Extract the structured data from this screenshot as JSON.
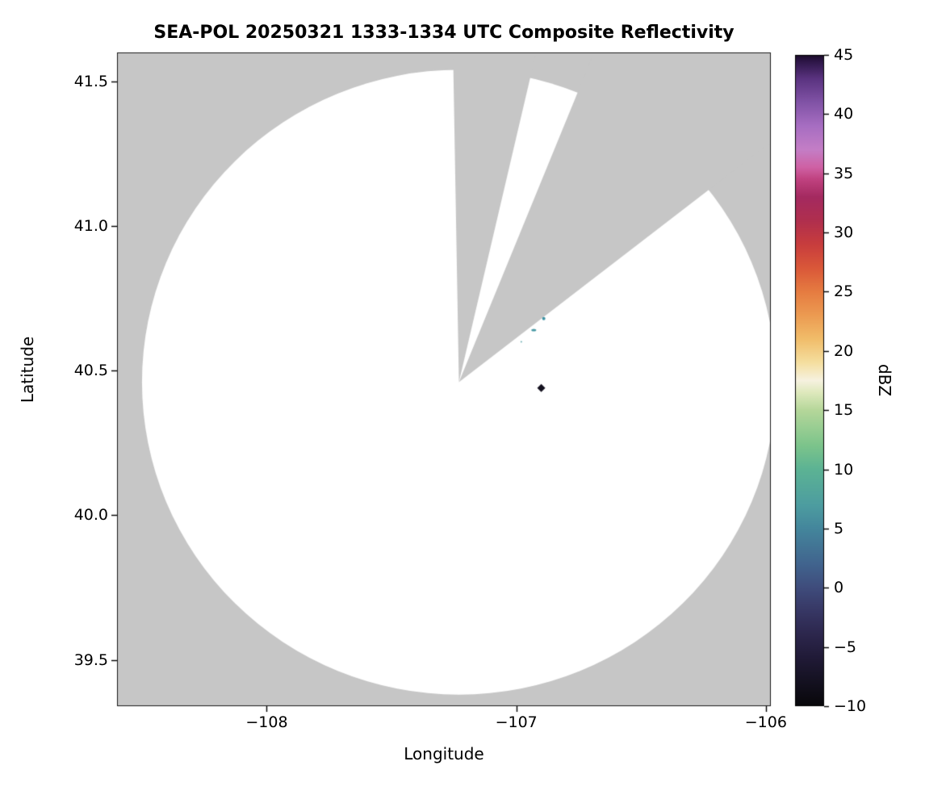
{
  "chart_data": {
    "type": "radar_ppi_map",
    "title": "SEA-POL 20250321 1333-1334 UTC Composite Reflectivity",
    "xlabel": "Longitude",
    "ylabel": "Latitude",
    "xlim": [
      -108.6,
      -105.98
    ],
    "ylim": [
      39.34,
      41.6
    ],
    "xticks": [
      -108,
      -107,
      -106
    ],
    "xtick_labels": [
      "−108",
      "−107",
      "−106"
    ],
    "yticks": [
      39.5,
      40.0,
      40.5,
      41.0,
      41.5
    ],
    "ytick_labels": [
      "39.5",
      "40.0",
      "40.5",
      "41.0",
      "41.5"
    ],
    "grid": false,
    "background_color": "#c6c6c6",
    "scan_area_color": "#ffffff",
    "spine_color": "#1a1a1a",
    "radar": {
      "center_lon": -107.23,
      "center_lat": 40.46,
      "radius_lon_deg": 1.27,
      "radius_lat_deg": 1.08,
      "blocked_sectors_deg": [
        {
          "start": 77.0,
          "end": 91.0
        },
        {
          "start": 38.0,
          "end": 68.0
        }
      ]
    },
    "echoes": [
      {
        "lon": -106.89,
        "lat": 40.68,
        "dbz": 7,
        "shape": "dot",
        "size": 4,
        "color": "#3e93a4"
      },
      {
        "lon": -106.93,
        "lat": 40.64,
        "dbz": 6,
        "shape": "dash",
        "size": 6,
        "color": "#4a9aa5"
      },
      {
        "lon": -106.98,
        "lat": 40.6,
        "dbz": 5,
        "shape": "dot",
        "size": 2,
        "color": "#6fb0b4"
      },
      {
        "lon": -106.9,
        "lat": 40.44,
        "dbz": -8,
        "shape": "diamond",
        "size": 10,
        "color": "#14111f"
      }
    ],
    "colorbar": {
      "label": "dBZ",
      "min": -10,
      "max": 45,
      "ticks": [
        -10,
        -5,
        0,
        5,
        10,
        15,
        20,
        25,
        30,
        35,
        40,
        45
      ],
      "tick_labels": [
        "−10",
        "−5",
        "0",
        "5",
        "10",
        "15",
        "20",
        "25",
        "30",
        "35",
        "40",
        "45"
      ],
      "stops": [
        {
          "v": -10,
          "c": "#08070a"
        },
        {
          "v": -8,
          "c": "#141120"
        },
        {
          "v": -6,
          "c": "#201a36"
        },
        {
          "v": -4,
          "c": "#2c264c"
        },
        {
          "v": -2,
          "c": "#373764"
        },
        {
          "v": 0,
          "c": "#3f4c7c"
        },
        {
          "v": 2,
          "c": "#41648e"
        },
        {
          "v": 5,
          "c": "#44869c"
        },
        {
          "v": 7,
          "c": "#4d9da0"
        },
        {
          "v": 10,
          "c": "#5cb394"
        },
        {
          "v": 12,
          "c": "#7cc48b"
        },
        {
          "v": 15,
          "c": "#b5d79a"
        },
        {
          "v": 16.5,
          "c": "#dfe9bd"
        },
        {
          "v": 17.5,
          "c": "#f6f2e0"
        },
        {
          "v": 19,
          "c": "#f5dfa0"
        },
        {
          "v": 21,
          "c": "#f1bd6a"
        },
        {
          "v": 23,
          "c": "#ec9b52"
        },
        {
          "v": 25,
          "c": "#e67c41"
        },
        {
          "v": 27,
          "c": "#da5839"
        },
        {
          "v": 29,
          "c": "#c83d3d"
        },
        {
          "v": 31,
          "c": "#b02f4e"
        },
        {
          "v": 33,
          "c": "#a42a60"
        },
        {
          "v": 34.5,
          "c": "#c04280"
        },
        {
          "v": 35.5,
          "c": "#cf61a4"
        },
        {
          "v": 37,
          "c": "#c47ec6"
        },
        {
          "v": 39,
          "c": "#a76ec2"
        },
        {
          "v": 41,
          "c": "#8153a6"
        },
        {
          "v": 43,
          "c": "#5a3380"
        },
        {
          "v": 44.5,
          "c": "#2c1545"
        },
        {
          "v": 45,
          "c": "#190b26"
        }
      ]
    }
  }
}
